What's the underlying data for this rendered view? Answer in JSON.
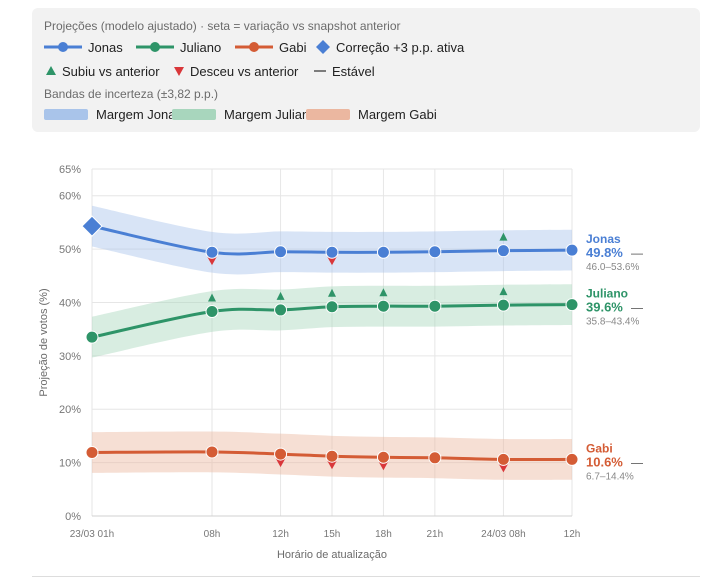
{
  "legend": {
    "title": "Projeções (modelo ajustado) · seta = variação vs snapshot anterior",
    "series_items": [
      {
        "label": "Jonas",
        "color": "#4a7fd4"
      },
      {
        "label": "Juliano",
        "color": "#2e9468"
      },
      {
        "label": "Gabi",
        "color": "#d45c35"
      },
      {
        "label": "Correção +3 p.p. ativa",
        "color": "#4a7fd4"
      }
    ],
    "trend_items": [
      {
        "label": "Subiu vs anterior",
        "color": "#2e9468"
      },
      {
        "label": "Desceu vs anterior",
        "color": "#d9373a"
      },
      {
        "label": "Estável",
        "color": "#555555"
      }
    ],
    "bands_title": "Bandas de incerteza (±3,82 p.p.)",
    "band_items": [
      {
        "label": "Margem Jonas",
        "color": "#a9c4ea"
      },
      {
        "label": "Margem Juliano",
        "color": "#a8d6bd"
      },
      {
        "label": "Margem Gabi",
        "color": "#ebb7a0"
      }
    ]
  },
  "chart_data": {
    "type": "line",
    "xlabel": "Horário de atualização",
    "ylabel": "Projeção de votos (%)",
    "ylim": [
      0,
      65
    ],
    "yticks": [
      0,
      10,
      20,
      30,
      40,
      50,
      60,
      65
    ],
    "ytick_labels": [
      "0%",
      "10%",
      "20%",
      "30%",
      "40%",
      "50%",
      "60%",
      "65%"
    ],
    "categories": [
      "23/03 01h",
      "08h",
      "12h",
      "15h",
      "18h",
      "21h",
      "24/03 08h",
      "12h"
    ],
    "x_positions": [
      0,
      7,
      11,
      14,
      17,
      20,
      24,
      28
    ],
    "margin_pp": 3.82,
    "series": [
      {
        "name": "Jonas",
        "color": "#4a7fd4",
        "band_color": "#a9c4ea",
        "values": [
          54.3,
          49.4,
          49.5,
          49.4,
          49.4,
          49.5,
          49.7,
          49.8
        ],
        "trend": [
          "none",
          "down",
          "none",
          "down",
          "none",
          "none",
          "up",
          "none"
        ],
        "correction_marker_index": 0,
        "final_value_label": "49.8%",
        "final_suffix": "—",
        "range_label": "46.0–53.6%"
      },
      {
        "name": "Juliano",
        "color": "#2e9468",
        "band_color": "#a8d6bd",
        "values": [
          33.5,
          38.3,
          38.6,
          39.2,
          39.3,
          39.3,
          39.5,
          39.6
        ],
        "trend": [
          "none",
          "up",
          "up",
          "up",
          "up",
          "none",
          "up",
          "none"
        ],
        "final_value_label": "39.6%",
        "final_suffix": "—",
        "range_label": "35.8–43.4%"
      },
      {
        "name": "Gabi",
        "color": "#d45c35",
        "band_color": "#ebb7a0",
        "values": [
          11.9,
          12.0,
          11.6,
          11.2,
          11.0,
          10.9,
          10.6,
          10.6
        ],
        "trend": [
          "none",
          "none",
          "down",
          "down",
          "down",
          "none",
          "down",
          "none"
        ],
        "final_value_label": "10.6%",
        "final_suffix": "—",
        "range_label": "6.7–14.4%"
      }
    ]
  }
}
